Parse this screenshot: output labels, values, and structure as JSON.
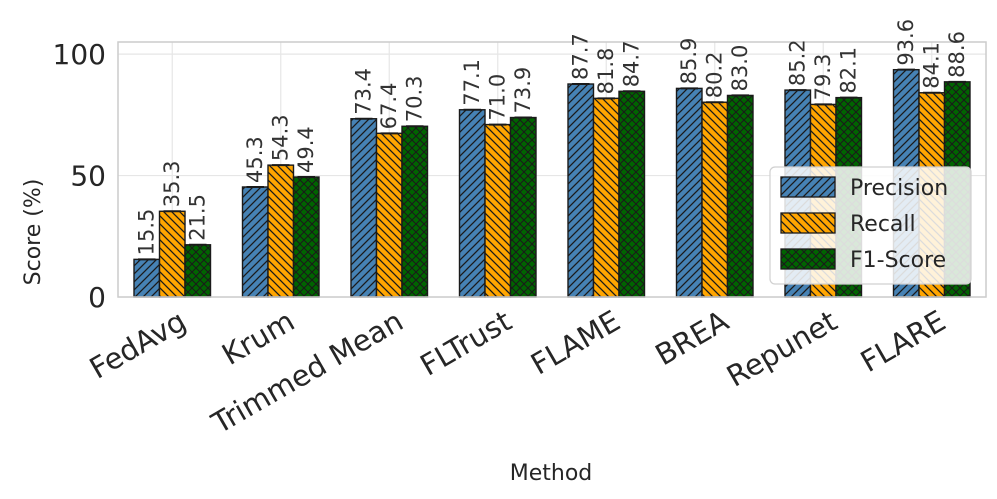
{
  "chart_data": {
    "type": "bar",
    "xlabel": "Method",
    "ylabel": "Score (%)",
    "ylim": [
      0,
      105
    ],
    "yticks": [
      0,
      50,
      100
    ],
    "grid": true,
    "legend_position": "lower-right",
    "categories": [
      "FedAvg",
      "Krum",
      "Trimmed Mean",
      "FLTrust",
      "FLAME",
      "BREA",
      "Repunet",
      "FLARE"
    ],
    "series": [
      {
        "name": "Precision",
        "color": "#4682b4",
        "hatch": "diagonal-forward",
        "values": [
          15.5,
          45.3,
          73.4,
          77.1,
          87.7,
          85.9,
          85.2,
          93.6
        ],
        "labels": [
          "15.5",
          "45.3",
          "73.4",
          "77.1",
          "87.7",
          "85.9",
          "85.2",
          "93.6"
        ]
      },
      {
        "name": "Recall",
        "color": "#ffa500",
        "hatch": "diagonal-back",
        "values": [
          35.3,
          54.3,
          67.4,
          71.0,
          81.8,
          80.2,
          79.3,
          84.1
        ],
        "labels": [
          "35.3",
          "54.3",
          "67.4",
          "71.0",
          "81.8",
          "80.2",
          "79.3",
          "84.1"
        ]
      },
      {
        "name": "F1-Score",
        "color": "#006400",
        "hatch": "crosshatch",
        "values": [
          21.5,
          49.4,
          70.3,
          73.9,
          84.7,
          83.0,
          82.1,
          88.6
        ],
        "labels": [
          "21.5",
          "49.4",
          "70.3",
          "73.9",
          "84.7",
          "83.0",
          "82.1",
          "88.6"
        ]
      }
    ]
  }
}
